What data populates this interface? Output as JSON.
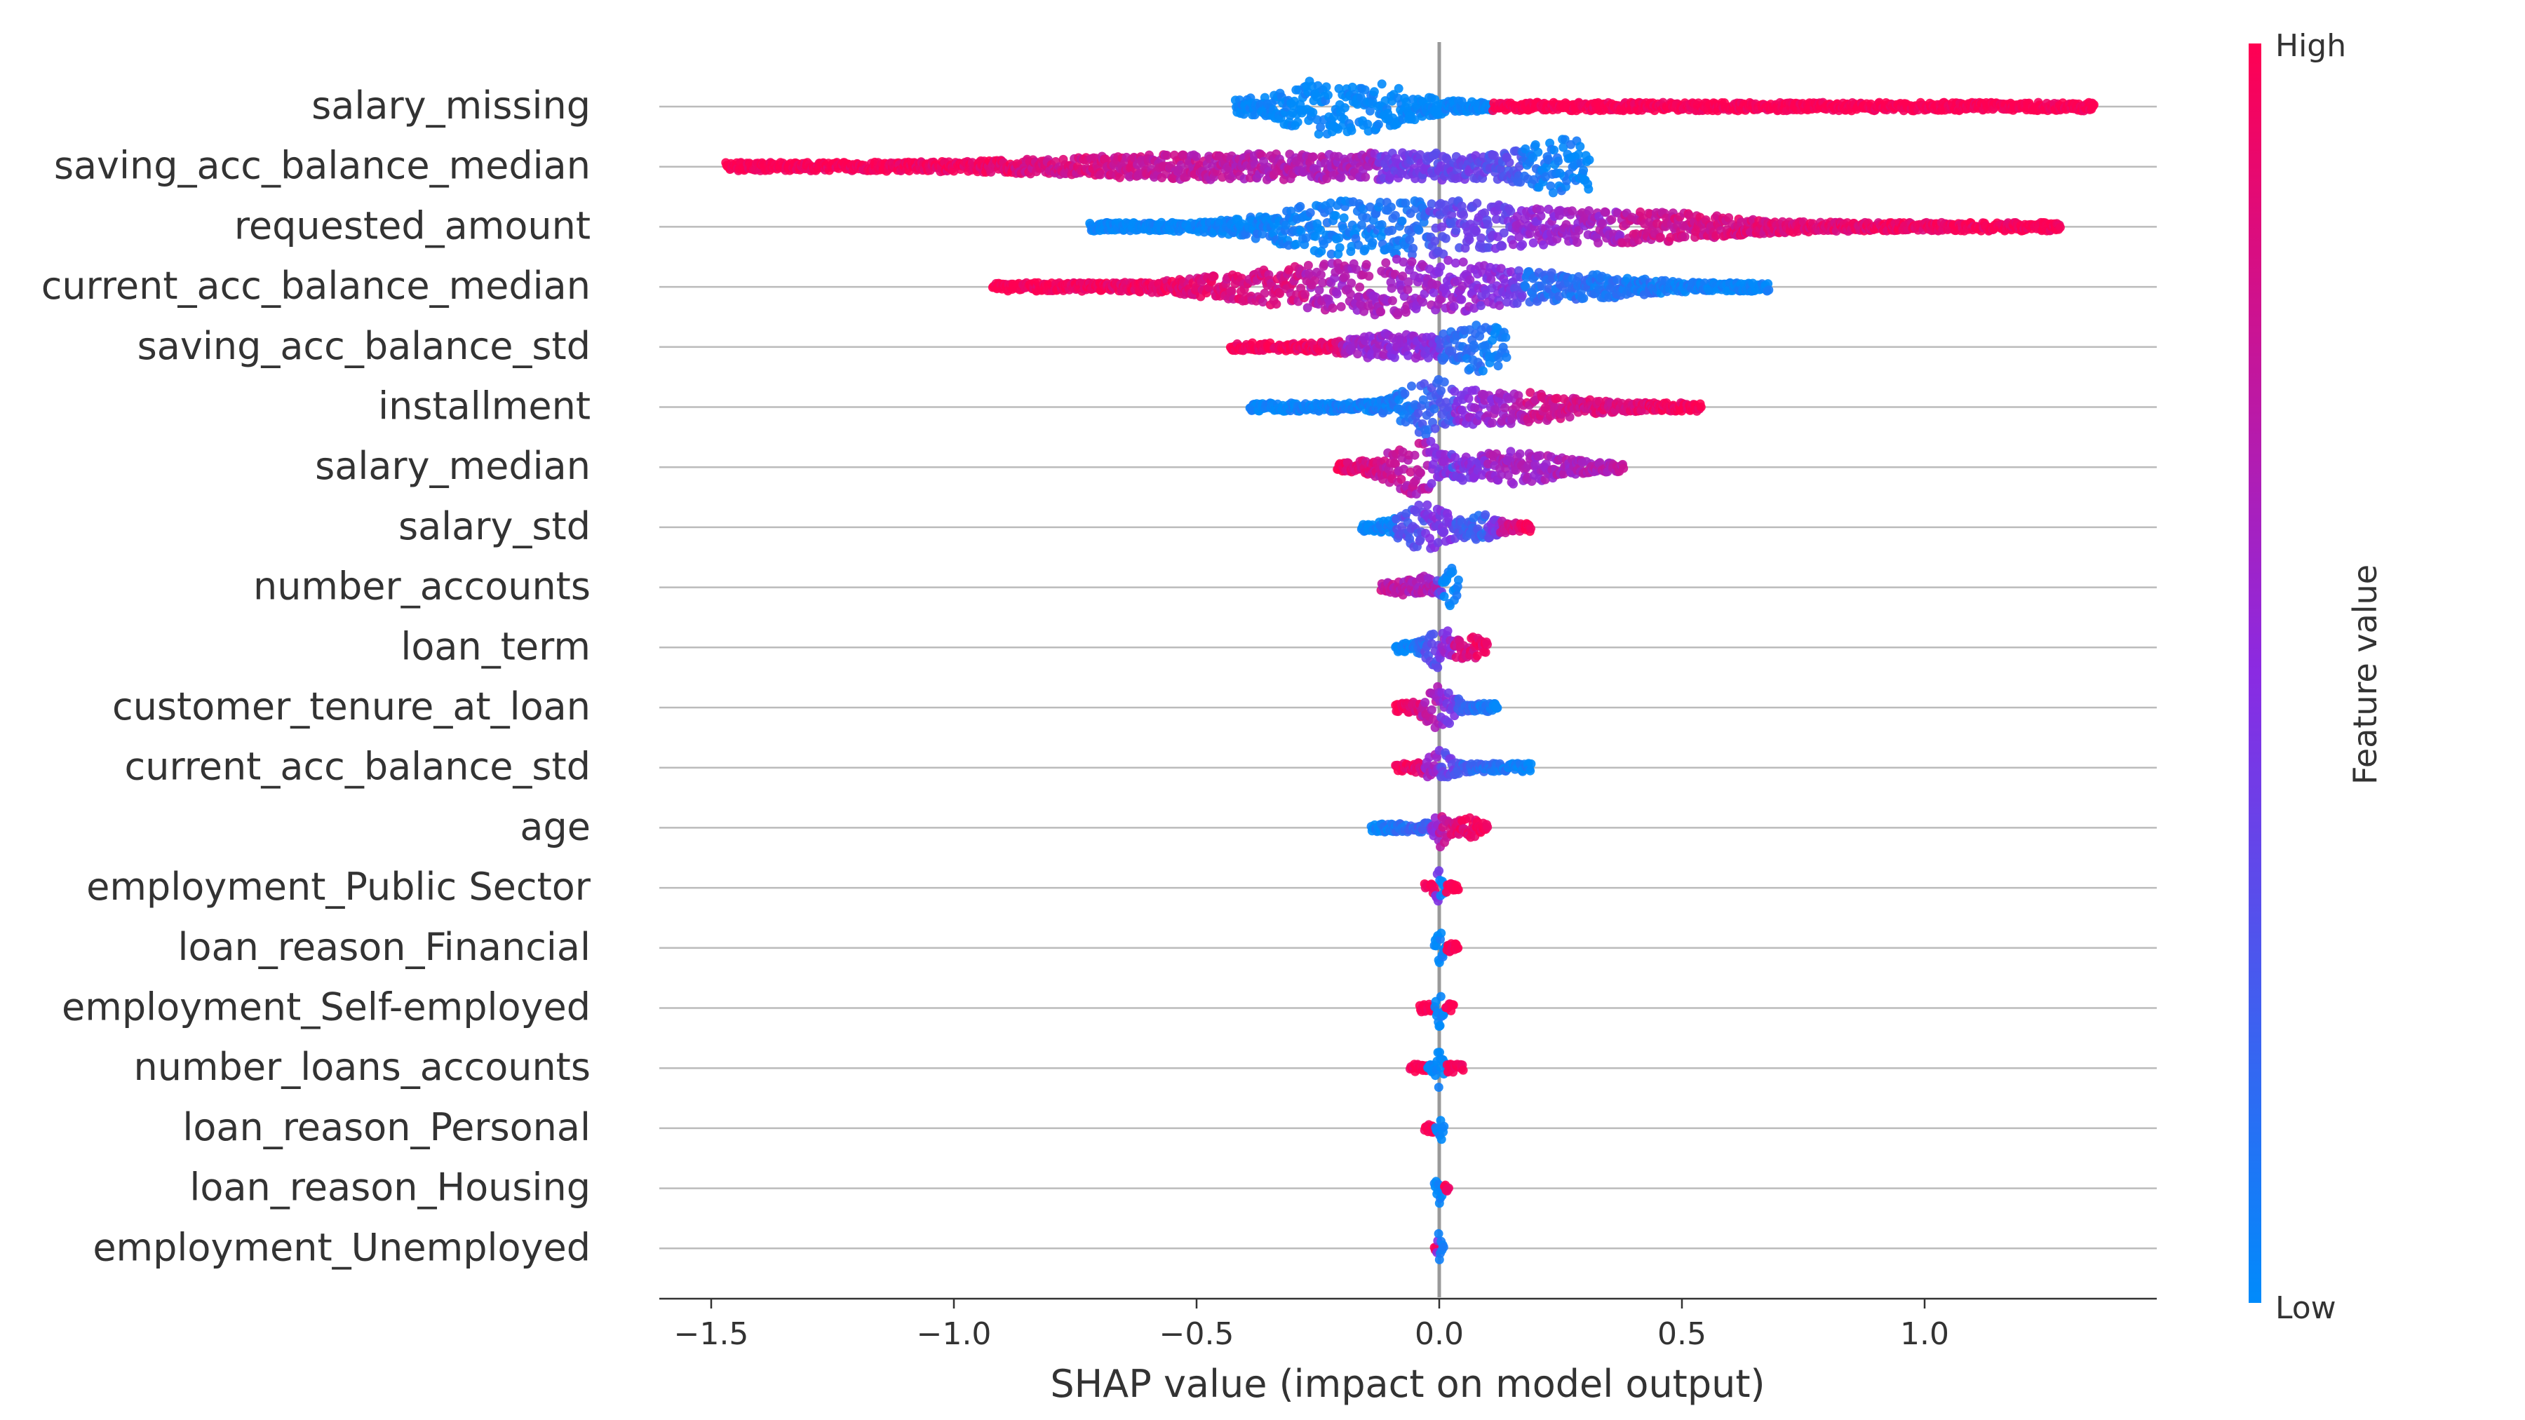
{
  "chart_data": {
    "type": "scatter",
    "subtype": "shap-beeswarm",
    "title": "",
    "xlabel": "SHAP value (impact on model output)",
    "ylabel": "",
    "xlim": [
      -1.6,
      1.48
    ],
    "x_ticks": [
      -1.5,
      -1.0,
      -0.5,
      0.0,
      0.5,
      1.0
    ],
    "x_tick_labels": [
      "−1.5",
      "−1.0",
      "−0.5",
      "0.0",
      "0.5",
      "1.0"
    ],
    "zero_line": 0.0,
    "grid": false,
    "colorbar": {
      "label": "Feature value",
      "high_label": "High",
      "low_label": "Low",
      "low_color": "#008bfb",
      "mid_color": "#8a2be2",
      "high_color": "#ff0052"
    },
    "features": [
      {
        "name": "salary_missing",
        "min": -0.42,
        "max": 1.35,
        "segments": [
          [
            -0.42,
            -0.08,
            0.0,
            0.0
          ],
          [
            0.3,
            1.35,
            1.0,
            1.0
          ]
        ],
        "bumps": [
          [
            -0.2,
            0.1,
            2.6,
            0.0
          ]
        ]
      },
      {
        "name": "saving_acc_balance_median",
        "min": -1.47,
        "max": 0.31,
        "segments": [
          [
            -1.47,
            -0.7,
            1.0,
            0.9
          ],
          [
            -0.7,
            0.1,
            0.85,
            0.35
          ],
          [
            0.1,
            0.31,
            0.3,
            0.0
          ]
        ],
        "bumps": [
          [
            0.26,
            0.06,
            2.2,
            0.0
          ],
          [
            -0.5,
            0.25,
            0.8,
            0.75
          ],
          [
            0.0,
            0.2,
            0.8,
            0.35
          ]
        ]
      },
      {
        "name": "requested_amount",
        "min": -0.72,
        "max": 1.28,
        "segments": [
          [
            -0.72,
            -0.15,
            0.0,
            0.05
          ],
          [
            -0.15,
            0.25,
            0.1,
            0.55
          ],
          [
            0.25,
            0.6,
            0.55,
            0.85
          ],
          [
            0.6,
            1.28,
            0.85,
            1.0
          ]
        ],
        "bumps": [
          [
            -0.2,
            0.12,
            2.2,
            0.05
          ],
          [
            0.0,
            0.1,
            1.0,
            0.4
          ],
          [
            0.15,
            0.15,
            1.1,
            0.6
          ],
          [
            0.45,
            0.15,
            0.9,
            0.85
          ]
        ]
      },
      {
        "name": "current_acc_balance_median",
        "min": -0.92,
        "max": 0.68,
        "segments": [
          [
            -0.92,
            -0.5,
            1.0,
            0.9
          ],
          [
            -0.5,
            -0.1,
            0.9,
            0.65
          ],
          [
            -0.1,
            0.15,
            0.65,
            0.35
          ],
          [
            0.15,
            0.68,
            0.2,
            0.0
          ]
        ],
        "bumps": [
          [
            -0.05,
            0.15,
            2.5,
            0.6
          ],
          [
            -0.35,
            0.12,
            1.0,
            0.85
          ],
          [
            0.3,
            0.1,
            0.7,
            0.1
          ]
        ]
      },
      {
        "name": "saving_acc_balance_std",
        "min": -0.43,
        "max": 0.14,
        "segments": [
          [
            -0.43,
            -0.2,
            1.0,
            0.9
          ],
          [
            -0.2,
            0.0,
            0.7,
            0.5
          ],
          [
            0.0,
            0.14,
            0.3,
            0.05
          ]
        ],
        "bumps": [
          [
            0.08,
            0.05,
            2.0,
            0.05
          ],
          [
            -0.1,
            0.06,
            0.9,
            0.5
          ]
        ]
      },
      {
        "name": "installment",
        "min": -0.39,
        "max": 0.54,
        "segments": [
          [
            -0.39,
            -0.05,
            0.0,
            0.1
          ],
          [
            -0.05,
            0.15,
            0.3,
            0.6
          ],
          [
            0.15,
            0.54,
            0.7,
            1.0
          ]
        ],
        "bumps": [
          [
            -0.03,
            0.04,
            1.9,
            0.1
          ],
          [
            0.06,
            0.08,
            1.0,
            0.6
          ],
          [
            0.2,
            0.08,
            0.8,
            0.85
          ]
        ]
      },
      {
        "name": "salary_median",
        "min": -0.21,
        "max": 0.38,
        "segments": [
          [
            -0.21,
            -0.02,
            0.95,
            0.6
          ],
          [
            -0.02,
            0.1,
            0.2,
            0.4
          ],
          [
            0.1,
            0.38,
            0.55,
            0.7
          ]
        ],
        "bumps": [
          [
            -0.05,
            0.05,
            2.4,
            0.75
          ],
          [
            0.15,
            0.08,
            1.2,
            0.65
          ]
        ]
      },
      {
        "name": "salary_std",
        "min": -0.16,
        "max": 0.19,
        "segments": [
          [
            -0.16,
            -0.03,
            0.0,
            0.1
          ],
          [
            -0.03,
            0.1,
            0.4,
            0.2
          ],
          [
            0.1,
            0.19,
            0.6,
            1.0
          ]
        ],
        "bumps": [
          [
            -0.03,
            0.04,
            1.8,
            0.55
          ],
          [
            0.08,
            0.03,
            0.9,
            0.2
          ]
        ]
      },
      {
        "name": "number_accounts",
        "min": -0.12,
        "max": 0.04,
        "segments": [
          [
            -0.12,
            -0.01,
            0.75,
            0.6
          ],
          [
            0.0,
            0.04,
            0.0,
            0.0
          ]
        ],
        "bumps": [
          [
            0.03,
            0.012,
            1.6,
            0.0
          ],
          [
            -0.04,
            0.03,
            0.7,
            0.7
          ]
        ]
      },
      {
        "name": "loan_term",
        "min": -0.09,
        "max": 0.1,
        "segments": [
          [
            -0.09,
            0.0,
            0.0,
            0.2
          ],
          [
            0.0,
            0.1,
            0.55,
            1.0
          ]
        ],
        "bumps": [
          [
            0.0,
            0.02,
            1.6,
            0.45
          ],
          [
            0.06,
            0.02,
            0.8,
            0.9
          ]
        ]
      },
      {
        "name": "customer_tenure_at_loan",
        "min": -0.09,
        "max": 0.12,
        "segments": [
          [
            -0.09,
            0.0,
            1.0,
            0.75
          ],
          [
            0.0,
            0.12,
            0.4,
            0.0
          ]
        ],
        "bumps": [
          [
            0.0,
            0.025,
            1.6,
            0.6
          ]
        ]
      },
      {
        "name": "current_acc_balance_std",
        "min": -0.09,
        "max": 0.19,
        "segments": [
          [
            -0.09,
            0.0,
            1.0,
            0.75
          ],
          [
            0.0,
            0.19,
            0.3,
            0.0
          ]
        ],
        "bumps": [
          [
            0.0,
            0.02,
            1.4,
            0.45
          ]
        ]
      },
      {
        "name": "age",
        "min": -0.14,
        "max": 0.1,
        "segments": [
          [
            -0.14,
            0.0,
            0.0,
            0.3
          ],
          [
            0.0,
            0.1,
            0.75,
            1.0
          ]
        ],
        "bumps": [
          [
            0.0,
            0.012,
            1.5,
            0.7
          ],
          [
            0.06,
            0.02,
            0.6,
            0.95
          ]
        ]
      },
      {
        "name": "employment_Public Sector",
        "min": -0.03,
        "max": 0.04,
        "segments": [
          [
            -0.03,
            0.0,
            1.0,
            1.0
          ],
          [
            0.0,
            0.01,
            0.0,
            0.0
          ],
          [
            0.02,
            0.04,
            1.0,
            1.0
          ]
        ],
        "bumps": [
          [
            0.0,
            0.006,
            1.4,
            0.0
          ]
        ]
      },
      {
        "name": "loan_reason_Financial",
        "min": -0.01,
        "max": 0.04,
        "segments": [
          [
            -0.01,
            0.01,
            0.0,
            0.0
          ],
          [
            0.02,
            0.04,
            1.0,
            1.0
          ]
        ],
        "bumps": [
          [
            0.0,
            0.005,
            1.4,
            0.0
          ]
        ]
      },
      {
        "name": "employment_Self-employed",
        "min": -0.04,
        "max": 0.03,
        "segments": [
          [
            -0.04,
            -0.01,
            1.0,
            1.0
          ],
          [
            -0.01,
            0.01,
            0.0,
            0.0
          ],
          [
            0.015,
            0.03,
            1.0,
            1.0
          ]
        ],
        "bumps": [
          [
            0.0,
            0.005,
            1.4,
            0.0
          ]
        ]
      },
      {
        "name": "number_loans_accounts",
        "min": -0.06,
        "max": 0.05,
        "segments": [
          [
            -0.06,
            -0.04,
            1.0,
            1.0
          ],
          [
            -0.01,
            0.01,
            0.0,
            0.0
          ],
          [
            0.02,
            0.05,
            1.0,
            1.0
          ]
        ],
        "bumps": [
          [
            0.0,
            0.005,
            1.5,
            0.0
          ]
        ]
      },
      {
        "name": "loan_reason_Personal",
        "min": -0.03,
        "max": 0.01,
        "segments": [
          [
            -0.03,
            -0.01,
            1.0,
            1.0
          ],
          [
            -0.005,
            0.01,
            0.0,
            0.0
          ]
        ],
        "bumps": [
          [
            0.0,
            0.004,
            1.4,
            0.0
          ]
        ]
      },
      {
        "name": "loan_reason_Housing",
        "min": -0.01,
        "max": 0.02,
        "segments": [
          [
            -0.01,
            0.01,
            0.0,
            0.0
          ],
          [
            0.01,
            0.02,
            1.0,
            1.0
          ]
        ],
        "bumps": [
          [
            0.0,
            0.004,
            1.4,
            0.0
          ]
        ]
      },
      {
        "name": "employment_Unemployed",
        "min": -0.01,
        "max": 0.01,
        "segments": [
          [
            -0.01,
            -0.002,
            1.0,
            1.0
          ],
          [
            -0.002,
            0.01,
            0.0,
            0.0
          ]
        ],
        "bumps": [
          [
            0.0,
            0.004,
            1.4,
            0.0
          ]
        ]
      }
    ]
  }
}
